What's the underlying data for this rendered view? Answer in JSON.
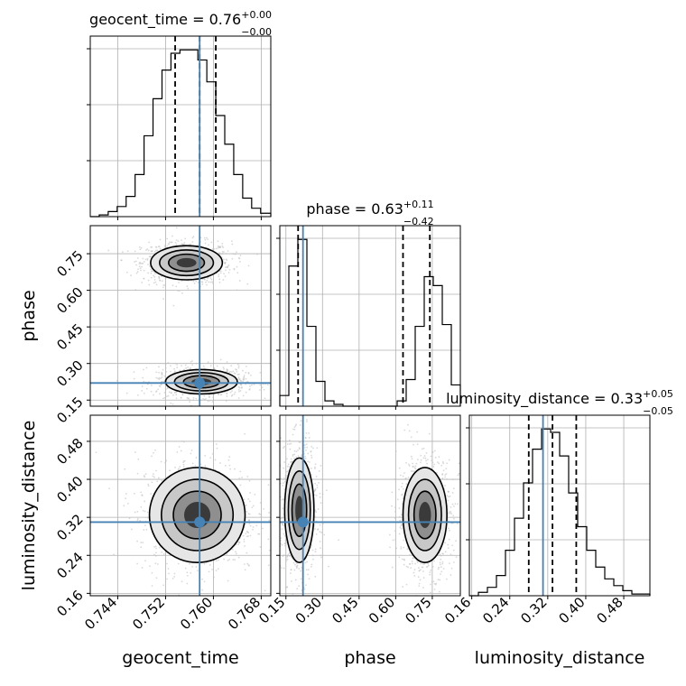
{
  "chart_data": {
    "type": "corner",
    "parameters": [
      "geocent_time",
      "phase",
      "luminosity_distance"
    ],
    "truths": {
      "geocent_time": 0.7577,
      "phase": 0.22,
      "luminosity_distance": 0.31
    },
    "axes_labels": {
      "geocent_time": "geocent_time",
      "phase": "phase",
      "luminosity_distance": "luminosity_distance"
    },
    "ticks": {
      "geocent_time": [
        "0.744",
        "0.752",
        "0.760",
        "0.768"
      ],
      "phase": [
        "0.15",
        "0.30",
        "0.45",
        "0.60",
        "0.75"
      ],
      "luminosity_distance": [
        "0.16",
        "0.24",
        "0.32",
        "0.40",
        "0.48"
      ]
    },
    "ranges": {
      "geocent_time": [
        0.7394,
        0.7696
      ],
      "phase": [
        0.125,
        0.865
      ],
      "luminosity_distance": [
        0.155,
        0.535
      ]
    },
    "titles": [
      {
        "prefix": "geocent_time = 0.76",
        "sup": "+0.00",
        "sub": "−0.00"
      },
      {
        "prefix": "phase = 0.63",
        "sup": "+0.11",
        "sub": "−0.42"
      },
      {
        "prefix": "luminosity_distance = 0.33",
        "sup": "+0.05",
        "sub": "−0.05"
      }
    ],
    "quantiles": {
      "geocent_time": [
        0.7536,
        0.7577,
        0.7604
      ],
      "phase": [
        0.2,
        0.63,
        0.74
      ],
      "luminosity_distance": [
        0.28,
        0.33,
        0.38
      ]
    },
    "histograms": {
      "geocent_time": {
        "edges": [
          0.7394,
          0.7409,
          0.7424,
          0.7439,
          0.7454,
          0.7469,
          0.7484,
          0.7499,
          0.7514,
          0.7529,
          0.7544,
          0.7559,
          0.7574,
          0.7589,
          0.7604,
          0.7619,
          0.7634,
          0.7649,
          0.7664,
          0.7679,
          0.7696
        ],
        "counts": [
          0,
          1,
          3,
          6,
          12,
          25,
          48,
          70,
          87,
          97,
          99,
          99,
          93,
          80,
          60,
          43,
          25,
          11,
          5,
          2
        ]
      },
      "phase": {
        "edges": [
          0.125,
          0.162,
          0.199,
          0.236,
          0.273,
          0.31,
          0.347,
          0.384,
          0.421,
          0.458,
          0.495,
          0.532,
          0.569,
          0.606,
          0.643,
          0.68,
          0.717,
          0.754,
          0.791,
          0.828,
          0.865
        ],
        "counts": [
          6,
          79,
          94,
          45,
          14,
          3,
          1,
          0,
          0,
          0,
          0,
          0,
          0,
          3,
          15,
          45,
          73,
          68,
          46,
          12
        ]
      },
      "luminosity_distance": {
        "edges": [
          0.155,
          0.174,
          0.193,
          0.212,
          0.231,
          0.25,
          0.269,
          0.288,
          0.307,
          0.326,
          0.345,
          0.364,
          0.383,
          0.402,
          0.421,
          0.44,
          0.459,
          0.478,
          0.497,
          0.516,
          0.535
        ],
        "counts": [
          0,
          2,
          5,
          12,
          27,
          46,
          67,
          87,
          99,
          97,
          83,
          61,
          41,
          27,
          17,
          10,
          6,
          3,
          1,
          1
        ]
      }
    },
    "joint_modes": {
      "phase_vs_geocent_time": [
        {
          "cx": 0.7555,
          "cy": 0.713,
          "sx": 0.003,
          "sy": 0.035
        },
        {
          "cx": 0.758,
          "cy": 0.225,
          "sx": 0.003,
          "sy": 0.025
        }
      ],
      "luminosity_distance_vs_geocent_time": [
        {
          "cx": 0.7573,
          "cy": 0.325,
          "sx": 0.004,
          "sy": 0.05
        }
      ],
      "luminosity_distance_vs_phase": [
        {
          "cx": 0.205,
          "cy": 0.335,
          "sx": 0.03,
          "sy": 0.055
        },
        {
          "cx": 0.72,
          "cy": 0.325,
          "sx": 0.045,
          "sy": 0.05
        }
      ]
    },
    "truth_color": "#4682b4",
    "grid": true
  }
}
